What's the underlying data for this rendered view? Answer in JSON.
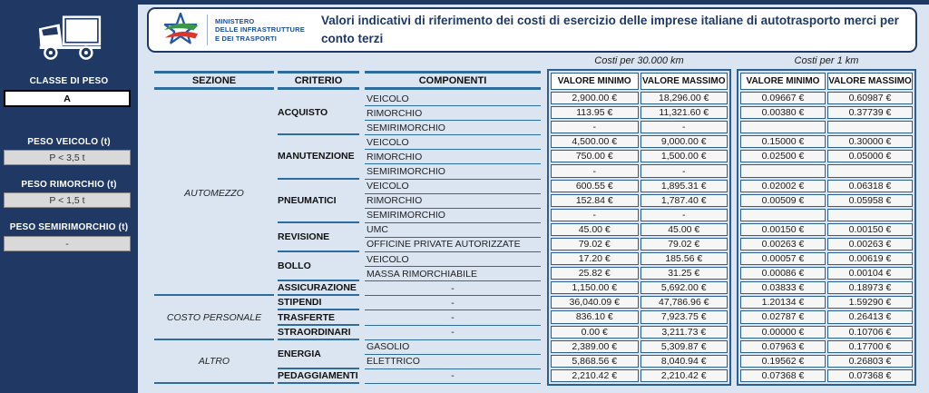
{
  "colors": {
    "navy": "#1f3864",
    "bar_blue": "#2e6c9e",
    "background": "#dbe5f1"
  },
  "sidebar": {
    "classe": {
      "label": "CLASSE DI PESO",
      "value": "A"
    },
    "fields": [
      {
        "label": "PESO VEICOLO (t)",
        "value": "P < 3,5 t"
      },
      {
        "label": "PESO RIMORCHIO (t)",
        "value": "P < 1,5 t"
      },
      {
        "label": "PESO SEMIRIMORCHIO (t)",
        "value": "-"
      }
    ]
  },
  "header": {
    "ministry_lines": [
      "MINISTERO",
      "DELLE INFRASTRUTTURE",
      "E DEI TRASPORTI"
    ],
    "title": "Valori indicativi di riferimento dei costi di esercizio delle imprese italiane di autotrasporto merci per conto terzi"
  },
  "table": {
    "group_headers": [
      "Costi per 30.000 km",
      "Costi per 1 km"
    ],
    "col_headers": [
      "SEZIONE",
      "CRITERIO",
      "COMPONENTI"
    ],
    "value_headers": [
      "VALORE MINIMO",
      "VALORE MASSIMO"
    ],
    "sections": [
      {
        "name": "AUTOMEZZO",
        "criteri": [
          {
            "name": "ACQUISTO",
            "rows": [
              {
                "componente": "VEICOLO",
                "v30min": "2,900.00 €",
                "v30max": "18,296.00 €",
                "v1min": "0.09667 €",
                "v1max": "0.60987 €"
              },
              {
                "componente": "RIMORCHIO",
                "v30min": "113.95 €",
                "v30max": "11,321.60 €",
                "v1min": "0.00380 €",
                "v1max": "0.37739 €"
              },
              {
                "componente": "SEMIRIMORCHIO",
                "v30min": "-",
                "v30max": "-",
                "v1min": "",
                "v1max": ""
              }
            ]
          },
          {
            "name": "MANUTENZIONE",
            "rows": [
              {
                "componente": "VEICOLO",
                "v30min": "4,500.00 €",
                "v30max": "9,000.00 €",
                "v1min": "0.15000 €",
                "v1max": "0.30000 €"
              },
              {
                "componente": "RIMORCHIO",
                "v30min": "750.00 €",
                "v30max": "1,500.00 €",
                "v1min": "0.02500 €",
                "v1max": "0.05000 €"
              },
              {
                "componente": "SEMIRIMORCHIO",
                "v30min": "-",
                "v30max": "-",
                "v1min": "",
                "v1max": ""
              }
            ]
          },
          {
            "name": "PNEUMATICI",
            "rows": [
              {
                "componente": "VEICOLO",
                "v30min": "600.55 €",
                "v30max": "1,895.31 €",
                "v1min": "0.02002 €",
                "v1max": "0.06318 €"
              },
              {
                "componente": "RIMORCHIO",
                "v30min": "152.84 €",
                "v30max": "1,787.40 €",
                "v1min": "0.00509 €",
                "v1max": "0.05958 €"
              },
              {
                "componente": "SEMIRIMORCHIO",
                "v30min": "-",
                "v30max": "-",
                "v1min": "",
                "v1max": ""
              }
            ]
          },
          {
            "name": "REVISIONE",
            "rows": [
              {
                "componente": "UMC",
                "v30min": "45.00 €",
                "v30max": "45.00 €",
                "v1min": "0.00150 €",
                "v1max": "0.00150 €"
              },
              {
                "componente": "OFFICINE PRIVATE AUTORIZZATE",
                "v30min": "79.02 €",
                "v30max": "79.02 €",
                "v1min": "0.00263 €",
                "v1max": "0.00263 €"
              }
            ]
          },
          {
            "name": "BOLLO",
            "rows": [
              {
                "componente": "VEICOLO",
                "v30min": "17.20 €",
                "v30max": "185.56 €",
                "v1min": "0.00057 €",
                "v1max": "0.00619 €"
              },
              {
                "componente": "MASSA RIMORCHIABILE",
                "v30min": "25.82 €",
                "v30max": "31.25 €",
                "v1min": "0.00086 €",
                "v1max": "0.00104 €"
              }
            ]
          },
          {
            "name": "ASSICURAZIONE",
            "rows": [
              {
                "componente": "-",
                "v30min": "1,150.00 €",
                "v30max": "5,692.00 €",
                "v1min": "0.03833 €",
                "v1max": "0.18973 €"
              }
            ]
          }
        ]
      },
      {
        "name": "COSTO PERSONALE",
        "criteri": [
          {
            "name": "STIPENDI",
            "rows": [
              {
                "componente": "-",
                "v30min": "36,040.09 €",
                "v30max": "47,786.96 €",
                "v1min": "1.20134 €",
                "v1max": "1.59290 €"
              }
            ]
          },
          {
            "name": "TRASFERTE",
            "rows": [
              {
                "componente": "-",
                "v30min": "836.10 €",
                "v30max": "7,923.75 €",
                "v1min": "0.02787 €",
                "v1max": "0.26413 €"
              }
            ]
          },
          {
            "name": "STRAORDINARI",
            "rows": [
              {
                "componente": "-",
                "v30min": "0.00 €",
                "v30max": "3,211.73 €",
                "v1min": "0.00000 €",
                "v1max": "0.10706 €"
              }
            ]
          }
        ]
      },
      {
        "name": "ALTRO",
        "criteri": [
          {
            "name": "ENERGIA",
            "rows": [
              {
                "componente": "GASOLIO",
                "v30min": "2,389.00 €",
                "v30max": "5,309.87 €",
                "v1min": "0.07963 €",
                "v1max": "0.17700 €"
              },
              {
                "componente": "ELETTRICO",
                "v30min": "5,868.56 €",
                "v30max": "8,040.94 €",
                "v1min": "0.19562 €",
                "v1max": "0.26803 €"
              }
            ]
          },
          {
            "name": "PEDAGGIAMENTI",
            "rows": [
              {
                "componente": "-",
                "v30min": "2,210.42 €",
                "v30max": "2,210.42 €",
                "v1min": "0.07368 €",
                "v1max": "0.07368 €"
              }
            ]
          }
        ]
      }
    ]
  }
}
